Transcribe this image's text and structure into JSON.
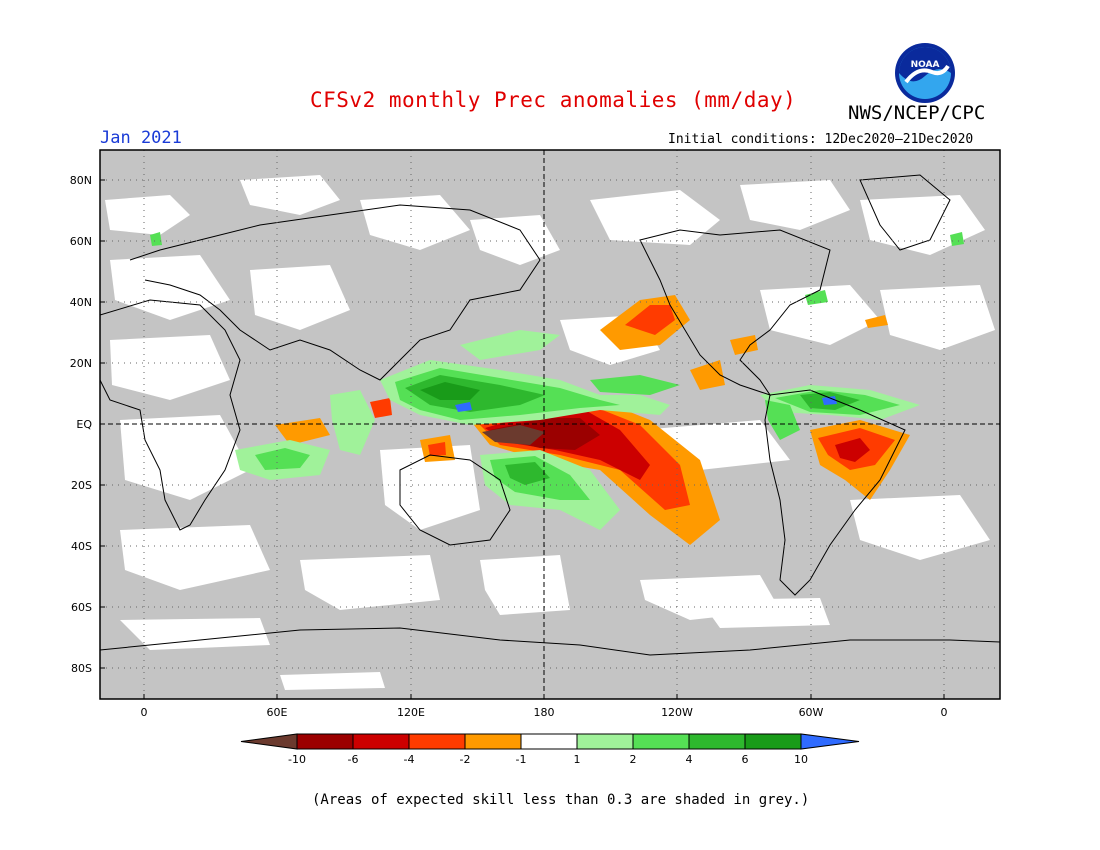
{
  "header": {
    "title": "CFSv2 monthly Prec anomalies (mm/day)",
    "title_color": "#e00000",
    "agency": "NWS/NCEP/CPC",
    "month": "Jan 2021",
    "month_color": "#1a3bd6",
    "initial_conditions": "Initial conditions: 12Dec2020–21Dec2020",
    "logo_text": "NOAA"
  },
  "map": {
    "lat_labels": [
      "80N",
      "60N",
      "40N",
      "20N",
      "EQ",
      "20S",
      "40S",
      "60S",
      "80S"
    ],
    "lon_labels": [
      "0",
      "60E",
      "120E",
      "180",
      "120W",
      "60W",
      "0"
    ],
    "skill_mask_color": "#c4c4c4"
  },
  "colorbar": {
    "boundaries": [
      "-10",
      "-6",
      "-4",
      "-2",
      "-1",
      "1",
      "2",
      "4",
      "6",
      "10"
    ],
    "colors": [
      "#6b3a2e",
      "#9b0000",
      "#cc0000",
      "#ff3b00",
      "#ff9a00",
      "#ffffff",
      "#a0f29a",
      "#55e055",
      "#2eb82e",
      "#199b19",
      "#2f6bff"
    ]
  },
  "footnote": "(Areas of expected skill less than 0.3 are shaded in grey.)"
}
